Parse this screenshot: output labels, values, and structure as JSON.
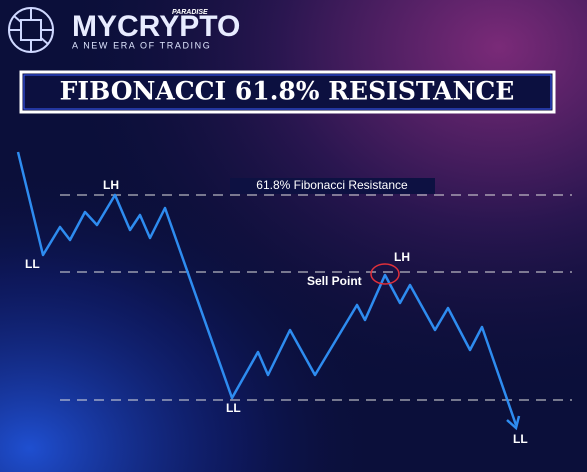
{
  "header": {
    "brand": "MYCRYPTO",
    "brand_tag": "PARADISE",
    "tagline": "A NEW ERA OF TRADING"
  },
  "title": "FIBONACCI 61.8% RESISTANCE",
  "diagram": {
    "fib_label": "61.8% Fibonacci Resistance",
    "points": [
      {
        "label": "LL"
      },
      {
        "label": "LH"
      },
      {
        "label": "Sell Point"
      },
      {
        "label": "LH"
      },
      {
        "label": "LL"
      },
      {
        "label": "LL"
      }
    ]
  }
}
